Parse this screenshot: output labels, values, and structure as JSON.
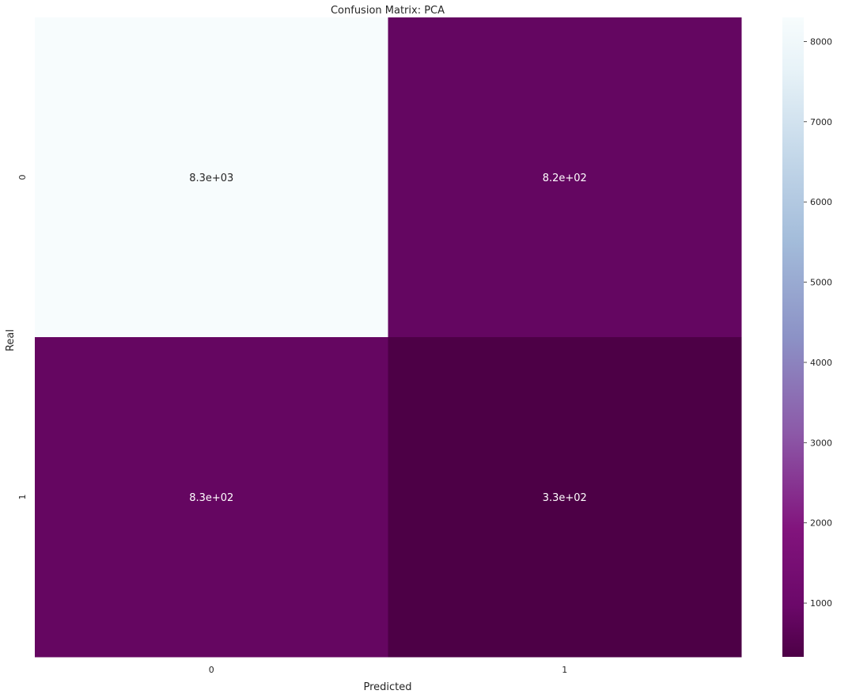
{
  "chart_data": {
    "type": "heatmap",
    "title": "Confusion Matrix: PCA",
    "xlabel": "Predicted",
    "ylabel": "Real",
    "x_categories": [
      "0",
      "1"
    ],
    "y_categories": [
      "0",
      "1"
    ],
    "values": [
      [
        8300,
        820
      ],
      [
        830,
        330
      ]
    ],
    "annotations": [
      [
        "8.3e+03",
        "8.2e+02"
      ],
      [
        "8.3e+02",
        "3.3e+02"
      ]
    ],
    "colormap": "BuPu_r",
    "color_range": [
      330,
      8300
    ],
    "colorbar_ticks": [
      1000,
      2000,
      3000,
      4000,
      5000,
      6000,
      7000,
      8000
    ],
    "colorbar_tick_labels": [
      "1000",
      "2000",
      "3000",
      "4000",
      "5000",
      "6000",
      "7000",
      "8000"
    ],
    "grid": false,
    "legend": "colorbar-right"
  }
}
